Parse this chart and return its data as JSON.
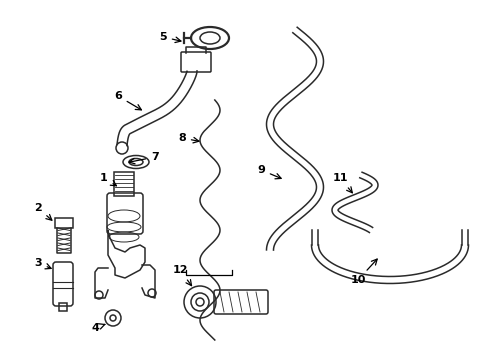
{
  "bg_color": "#ffffff",
  "line_color": "#2a2a2a",
  "label_color": "#000000",
  "fig_width": 4.9,
  "fig_height": 3.6,
  "dpi": 100
}
